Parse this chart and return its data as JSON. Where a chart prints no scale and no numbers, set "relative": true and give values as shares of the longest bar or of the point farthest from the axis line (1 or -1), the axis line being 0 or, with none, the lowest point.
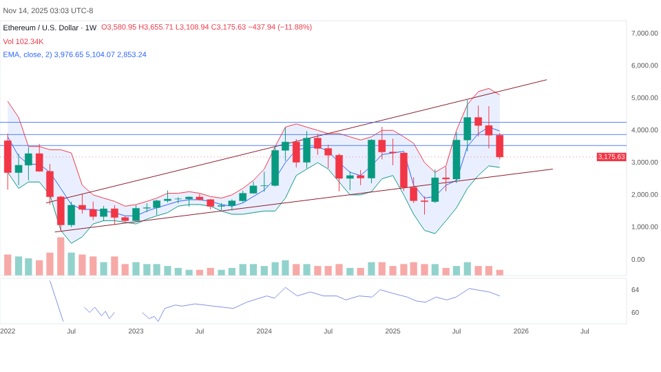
{
  "chart_data": [
    {
      "type": "candlestick",
      "title": "Ethereum / U.S. Dollar · 1W",
      "subtitle": "Nov 14, 2025 03:03 UTC-8",
      "annotations": [
        "O3,580.95 H3,655.71 L3,108.94 C3,175.63 −437.94 (−11.88%)",
        "Vol 102.34K",
        "EMA, close, 2) 3,976.65 5,104.07 2,853.24"
      ],
      "x": [
        "2022-01",
        "2022-02",
        "2022-03",
        "2022-04",
        "2022-05",
        "2022-06",
        "2022-07",
        "2022-08",
        "2022-09",
        "2022-10",
        "2022-11",
        "2022-12",
        "2023-01",
        "2023-02",
        "2023-03",
        "2023-04",
        "2023-05",
        "2023-06",
        "2023-07",
        "2023-08",
        "2023-09",
        "2023-10",
        "2023-11",
        "2023-12",
        "2024-01",
        "2024-02",
        "2024-03",
        "2024-04",
        "2024-05",
        "2024-06",
        "2024-07",
        "2024-08",
        "2024-09",
        "2024-10",
        "2024-11",
        "2024-12",
        "2025-01",
        "2025-02",
        "2025-03",
        "2025-04",
        "2025-05",
        "2025-06",
        "2025-07",
        "2025-08",
        "2025-09",
        "2025-10",
        "2025-11"
      ],
      "ohlc": [
        [
          3680,
          3900,
          2160,
          2690
        ],
        [
          2690,
          3280,
          2300,
          2920
        ],
        [
          2920,
          3480,
          2450,
          3280
        ],
        [
          3280,
          3580,
          2720,
          2730
        ],
        [
          2730,
          2960,
          1700,
          1940
        ],
        [
          1940,
          1970,
          880,
          1070
        ],
        [
          1070,
          1790,
          1000,
          1680
        ],
        [
          1680,
          2030,
          1420,
          1550
        ],
        [
          1550,
          1790,
          1220,
          1330
        ],
        [
          1330,
          1660,
          1190,
          1570
        ],
        [
          1570,
          1680,
          1070,
          1300
        ],
        [
          1300,
          1350,
          1150,
          1200
        ],
        [
          1200,
          1680,
          1190,
          1585
        ],
        [
          1585,
          1740,
          1460,
          1605
        ],
        [
          1605,
          1850,
          1370,
          1820
        ],
        [
          1820,
          2140,
          1760,
          1870
        ],
        [
          1870,
          1930,
          1740,
          1875
        ],
        [
          1875,
          1950,
          1630,
          1935
        ],
        [
          1935,
          2030,
          1825,
          1855
        ],
        [
          1855,
          1870,
          1550,
          1645
        ],
        [
          1645,
          1750,
          1530,
          1670
        ],
        [
          1670,
          1860,
          1520,
          1815
        ],
        [
          1815,
          2130,
          1770,
          2050
        ],
        [
          2050,
          2410,
          2040,
          2280
        ],
        [
          2280,
          2720,
          2100,
          2290
        ],
        [
          2290,
          3520,
          2260,
          3380
        ],
        [
          3380,
          4090,
          3050,
          3640
        ],
        [
          3640,
          3730,
          2850,
          3010
        ],
        [
          3010,
          3980,
          2820,
          3760
        ],
        [
          3760,
          3890,
          3240,
          3440
        ],
        [
          3440,
          3560,
          2820,
          3230
        ],
        [
          3230,
          3280,
          2110,
          2510
        ],
        [
          2510,
          2730,
          2150,
          2600
        ],
        [
          2600,
          2770,
          2300,
          2520
        ],
        [
          2520,
          3730,
          2360,
          3700
        ],
        [
          3700,
          4110,
          3100,
          3330
        ],
        [
          3330,
          3740,
          2920,
          3300
        ],
        [
          3300,
          3300,
          2120,
          2230
        ],
        [
          2230,
          2550,
          1750,
          1820
        ],
        [
          1820,
          1960,
          1390,
          1790
        ],
        [
          1790,
          2790,
          1750,
          2530
        ],
        [
          2530,
          2880,
          2110,
          2490
        ],
        [
          2490,
          3940,
          2370,
          3700
        ],
        [
          3700,
          4950,
          3350,
          4400
        ],
        [
          4400,
          4770,
          3810,
          4150
        ],
        [
          4150,
          4750,
          3440,
          3850
        ],
        [
          3850,
          3920,
          3100,
          3175
        ]
      ],
      "colors": [
        "#f23645",
        "#089981",
        "#089981",
        "#f23645",
        "#f23645",
        "#f23645",
        "#089981",
        "#f23645",
        "#f23645",
        "#089981",
        "#f23645",
        "#f23645",
        "#089981",
        "#089981",
        "#089981",
        "#089981",
        "#089981",
        "#089981",
        "#f23645",
        "#f23645",
        "#089981",
        "#089981",
        "#089981",
        "#089981",
        "#089981",
        "#089981",
        "#089981",
        "#f23645",
        "#089981",
        "#f23645",
        "#f23645",
        "#f23645",
        "#089981",
        "#f23645",
        "#089981",
        "#f23645",
        "#f23645",
        "#f23645",
        "#f23645",
        "#f23645",
        "#089981",
        "#f23645",
        "#089981",
        "#089981",
        "#f23645",
        "#f23645",
        "#f23645"
      ],
      "series": [
        {
          "type": "line",
          "color": "#2962ff",
          "values": [
            3800,
            3200,
            2950,
            2950,
            2700,
            2200,
            1700,
            1550,
            1550,
            1500,
            1450,
            1350,
            1350,
            1500,
            1600,
            1700,
            1800,
            1850,
            1850,
            1800,
            1700,
            1650,
            1750,
            1950,
            2150,
            2500,
            3000,
            3400,
            3450,
            3500,
            3350,
            3000,
            2700,
            2600,
            2900,
            3250,
            3300,
            3350,
            2300,
            1900,
            1950,
            2300,
            2450,
            3500,
            3900,
            4100,
            3980
          ],
          "upper": [
            4900,
            4400,
            3500,
            3500,
            3400,
            3400,
            3300,
            2300,
            2000,
            1900,
            1800,
            1650,
            1700,
            1800,
            1900,
            2050,
            2050,
            2100,
            2050,
            1950,
            1900,
            2000,
            2200,
            2450,
            2800,
            3500,
            4100,
            4200,
            4100,
            4000,
            3900,
            3900,
            3800,
            3700,
            3800,
            4000,
            4000,
            3800,
            3600,
            3000,
            2700,
            2900,
            4000,
            4800,
            5200,
            5300,
            5100
          ],
          "lower": [
            2700,
            2200,
            2400,
            2400,
            2000,
            900,
            500,
            700,
            1100,
            1200,
            1200,
            1150,
            1100,
            1250,
            1350,
            1450,
            1650,
            1700,
            1700,
            1650,
            1500,
            1400,
            1400,
            1450,
            1500,
            1500,
            1900,
            2600,
            2800,
            3000,
            2800,
            2400,
            2000,
            2000,
            2100,
            2500,
            2600,
            2000,
            1400,
            900,
            800,
            1200,
            1600,
            2200,
            2600,
            2900,
            2850
          ]
        },
        {
          "type": "line",
          "color": "#f23645",
          "values": [
            4900,
            4400,
            3500,
            3500,
            3400,
            3400,
            3300,
            2300,
            2000,
            1900,
            1800,
            1650,
            1700,
            1800,
            1900,
            2050,
            2050,
            2100,
            2050,
            1950,
            1900,
            2000,
            2200,
            2450,
            2800,
            3500,
            4100,
            4200,
            4100,
            4000,
            3900,
            3900,
            3800,
            3700,
            3800,
            4000,
            4000,
            3800,
            3600,
            3000,
            2700,
            2900,
            4000,
            4800,
            5200,
            5300,
            5100
          ]
        },
        {
          "type": "line",
          "color": "#089981",
          "values": [
            2700,
            2200,
            2400,
            2400,
            2000,
            900,
            500,
            700,
            1100,
            1200,
            1200,
            1150,
            1100,
            1250,
            1350,
            1450,
            1650,
            1700,
            1700,
            1650,
            1500,
            1400,
            1400,
            1450,
            1500,
            1500,
            1900,
            2600,
            2800,
            3000,
            2800,
            2400,
            2000,
            2000,
            2100,
            2500,
            2600,
            2000,
            1400,
            900,
            800,
            1200,
            1600,
            2200,
            2600,
            2900,
            2850
          ]
        },
        {
          "type": "line",
          "color": "#8b1a2b",
          "x": [
            "2022-04-20",
            "2026-03-15"
          ],
          "values": [
            1750,
            5570
          ]
        },
        {
          "type": "line",
          "color": "#8b1a2b",
          "x": [
            "2022-05-15",
            "2026-04-01"
          ],
          "values": [
            850,
            2800
          ]
        }
      ],
      "ref_lines": [
        {
          "axis": "y",
          "value": 4250,
          "color": "#2962ff"
        },
        {
          "axis": "y",
          "value": 3870,
          "color": "#2962ff"
        },
        {
          "axis": "y",
          "value": 3530,
          "color": "#2962ff"
        },
        {
          "axis": "y",
          "value": 3175.63,
          "label": "3,175.63",
          "color": "#f23645",
          "line_style": "dotted"
        }
      ],
      "xlim": [
        "2021-12-10",
        "2026-10-28"
      ],
      "ylim": [
        -500,
        7400
      ],
      "yticks": [
        {
          "value": 0,
          "label": "0.00"
        },
        {
          "value": 1000,
          "label": "1,000.00"
        },
        {
          "value": 2000,
          "label": "2,000.00"
        },
        {
          "value": 3000,
          "label": "3,000.00"
        },
        {
          "value": 4000,
          "label": "4,000.00"
        },
        {
          "value": 5000,
          "label": "5,000.00"
        },
        {
          "value": 6000,
          "label": "6,000.00"
        },
        {
          "value": 7000,
          "label": "7,000.00"
        }
      ]
    },
    {
      "type": "bar",
      "relative": true,
      "xlim": [
        "2021-12-10",
        "2026-10-28"
      ],
      "x": [
        "2022-01",
        "2022-02",
        "2022-03",
        "2022-04",
        "2022-05",
        "2022-06",
        "2022-07",
        "2022-08",
        "2022-09",
        "2022-10",
        "2022-11",
        "2022-12",
        "2023-01",
        "2023-02",
        "2023-03",
        "2023-04",
        "2023-05",
        "2023-06",
        "2023-07",
        "2023-08",
        "2023-09",
        "2023-10",
        "2023-11",
        "2023-12",
        "2024-01",
        "2024-02",
        "2024-03",
        "2024-04",
        "2024-05",
        "2024-06",
        "2024-07",
        "2024-08",
        "2024-09",
        "2024-10",
        "2024-11",
        "2024-12",
        "2025-01",
        "2025-02",
        "2025-03",
        "2025-04",
        "2025-05",
        "2025-06",
        "2025-07",
        "2025-08",
        "2025-09",
        "2025-10",
        "2025-11"
      ],
      "values": [
        0.55,
        0.5,
        0.45,
        0.4,
        0.6,
        1.0,
        0.6,
        0.55,
        0.5,
        0.35,
        0.5,
        0.3,
        0.35,
        0.3,
        0.3,
        0.25,
        0.2,
        0.15,
        0.15,
        0.2,
        0.15,
        0.2,
        0.3,
        0.3,
        0.25,
        0.35,
        0.4,
        0.3,
        0.3,
        0.25,
        0.25,
        0.3,
        0.2,
        0.2,
        0.35,
        0.35,
        0.25,
        0.3,
        0.35,
        0.3,
        0.3,
        0.2,
        0.25,
        0.35,
        0.25,
        0.25,
        0.15
      ],
      "colors": [
        "#f7a9a7",
        "#92d2cc",
        "#92d2cc",
        "#f7a9a7",
        "#f7a9a7",
        "#f7a9a7",
        "#92d2cc",
        "#f7a9a7",
        "#f7a9a7",
        "#92d2cc",
        "#f7a9a7",
        "#f7a9a7",
        "#92d2cc",
        "#92d2cc",
        "#92d2cc",
        "#92d2cc",
        "#92d2cc",
        "#92d2cc",
        "#f7a9a7",
        "#f7a9a7",
        "#92d2cc",
        "#92d2cc",
        "#92d2cc",
        "#92d2cc",
        "#92d2cc",
        "#92d2cc",
        "#92d2cc",
        "#f7a9a7",
        "#92d2cc",
        "#f7a9a7",
        "#f7a9a7",
        "#f7a9a7",
        "#92d2cc",
        "#f7a9a7",
        "#92d2cc",
        "#f7a9a7",
        "#f7a9a7",
        "#f7a9a7",
        "#f7a9a7",
        "#f7a9a7",
        "#92d2cc",
        "#f7a9a7",
        "#92d2cc",
        "#92d2cc",
        "#f7a9a7",
        "#f7a9a7",
        "#f7a9a7"
      ]
    },
    {
      "type": "line",
      "color": "#7e90e6",
      "xlim": [
        "2021-12-10",
        "2026-10-28"
      ],
      "ylim": [
        58,
        66
      ],
      "yticks": [
        60,
        64
      ],
      "xticks": [
        {
          "value": "2022-01-01",
          "label": "2022"
        },
        {
          "value": "2022-07-01",
          "label": "Jul"
        },
        {
          "value": "2023-01-01",
          "label": "2023"
        },
        {
          "value": "2023-07-01",
          "label": "Jul"
        },
        {
          "value": "2024-01-01",
          "label": "2024"
        },
        {
          "value": "2024-07-01",
          "label": "Jul"
        },
        {
          "value": "2025-01-01",
          "label": "2025"
        },
        {
          "value": "2025-07-01",
          "label": "Jul"
        },
        {
          "value": "2026-01-01",
          "label": "2026"
        },
        {
          "value": "2026-07-01",
          "label": "Jul"
        }
      ],
      "x": [
        "2022-05-01",
        "2022-06-08",
        "2022-07-01",
        "2022-08-07",
        "2022-08-22",
        "2022-09-06",
        "2022-09-25",
        "2022-10-06",
        "2022-10-17",
        "2022-11-01",
        "2022-11-25",
        "2023-01-19",
        "2023-02-07",
        "2023-02-22",
        "2023-03-05",
        "2023-03-24",
        "2023-04-23",
        "2023-05-12",
        "2023-06-18",
        "2023-08-10",
        "2023-10-05",
        "2023-11-12",
        "2024-01-08",
        "2024-01-30",
        "2024-03-01",
        "2024-04-04",
        "2024-05-11",
        "2024-06-18",
        "2024-07-25",
        "2024-08-20",
        "2024-09-27",
        "2024-11-03",
        "2024-11-26",
        "2025-01-04",
        "2025-02-11",
        "2025-03-09",
        "2025-04-04",
        "2025-05-04",
        "2025-06-03",
        "2025-06-30",
        "2025-08-06",
        "2025-09-13",
        "2025-10-02",
        "2025-11-01"
      ],
      "values": [
        65.6,
        58.4,
        null,
        60.9,
        60.0,
        60.9,
        59.4,
        60.2,
        58.9,
        60.0,
        null,
        60.0,
        58.9,
        59.3,
        58.4,
        60.7,
        61.3,
        61.1,
        61.5,
        61.1,
        60.7,
        61.8,
        62.9,
        62.5,
        64.4,
        62.9,
        63.6,
        62.9,
        62.9,
        62.2,
        62.9,
        62.7,
        64.0,
        63.3,
        62.7,
        62.0,
        61.8,
        62.7,
        62.2,
        62.7,
        64.2,
        63.8,
        63.6,
        62.9
      ]
    }
  ]
}
